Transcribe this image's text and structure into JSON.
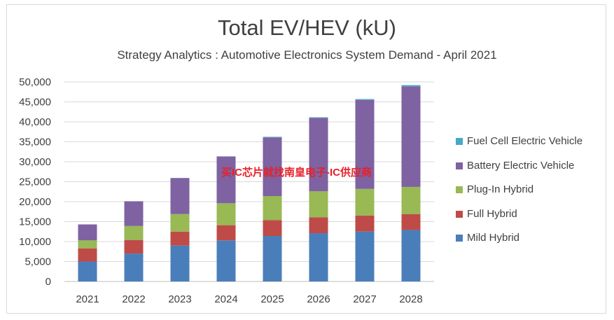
{
  "chart_data": {
    "type": "bar",
    "stacked": true,
    "title": "Total EV/HEV (kU)",
    "subtitle": "Strategy Analytics : Automotive Electronics System Demand - April 2021",
    "categories": [
      "2021",
      "2022",
      "2023",
      "2024",
      "2025",
      "2026",
      "2027",
      "2028"
    ],
    "ylim": [
      0,
      50000
    ],
    "yticks": [
      "0",
      "5,000",
      "10,000",
      "15,000",
      "20,000",
      "25,000",
      "30,000",
      "35,000",
      "40,000",
      "45,000",
      "50,000"
    ],
    "grid": true,
    "legend_position": "right",
    "series": [
      {
        "name": "Mild Hybrid",
        "color": "#4a7ebb",
        "values": [
          5000,
          7000,
          9000,
          10300,
          11400,
          12100,
          12500,
          12900
        ]
      },
      {
        "name": "Full Hybrid",
        "color": "#be4b48",
        "values": [
          3300,
          3400,
          3500,
          3800,
          4000,
          4000,
          4000,
          4000
        ]
      },
      {
        "name": "Plug-In Hybrid",
        "color": "#98b954",
        "values": [
          2000,
          3500,
          4400,
          5500,
          6000,
          6500,
          6700,
          6800
        ]
      },
      {
        "name": "Battery Electric Vehicle",
        "color": "#7e62a1",
        "values": [
          4000,
          6200,
          9000,
          11700,
          14700,
          18400,
          22300,
          25200
        ]
      },
      {
        "name": "Fuel Cell Electric Vehicle",
        "color": "#46aac5",
        "values": [
          0,
          0,
          50,
          60,
          150,
          150,
          200,
          300
        ]
      }
    ]
  },
  "watermark": "买IC芯片就找南皇电子-IC供应商"
}
